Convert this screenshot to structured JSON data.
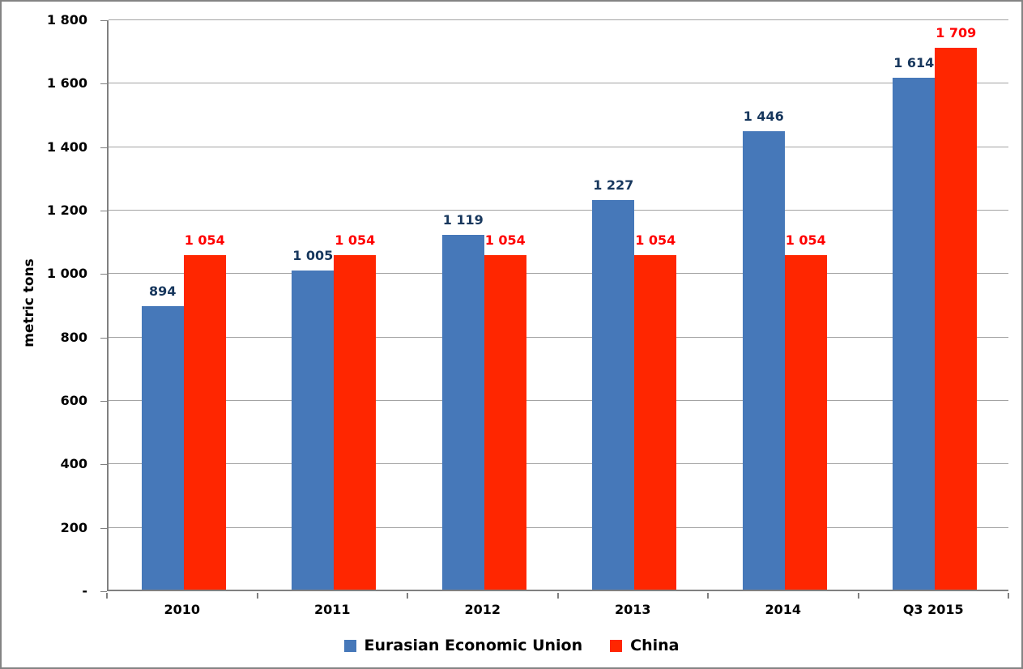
{
  "chart_data": {
    "type": "bar",
    "title": "",
    "xlabel": "",
    "ylabel": "metric tons",
    "ylim": [
      0,
      1800
    ],
    "grid": true,
    "legend_position": "bottom",
    "categories": [
      "2010",
      "2011",
      "2012",
      "2013",
      "2014",
      "Q3 2015"
    ],
    "series": [
      {
        "name": "Eurasian Economic Union",
        "color": "#4678B9",
        "label_color": "#17375D",
        "values": [
          894,
          1005,
          1119,
          1227,
          1446,
          1614
        ],
        "labels": [
          "894",
          "1 005",
          "1 119",
          "1 227",
          "1 446",
          "1 614"
        ]
      },
      {
        "name": "China",
        "color": "#FF2600",
        "label_color": "#FF0000",
        "values": [
          1054,
          1054,
          1054,
          1054,
          1054,
          1709
        ],
        "labels": [
          "1 054",
          "1 054",
          "1 054",
          "1 054",
          "1 054",
          "1 709"
        ]
      }
    ],
    "y_ticks": [
      {
        "value": 0,
        "label": "-"
      },
      {
        "value": 200,
        "label": "200"
      },
      {
        "value": 400,
        "label": "400"
      },
      {
        "value": 600,
        "label": "600"
      },
      {
        "value": 800,
        "label": "800"
      },
      {
        "value": 1000,
        "label": "1 000"
      },
      {
        "value": 1200,
        "label": "1 200"
      },
      {
        "value": 1400,
        "label": "1 400"
      },
      {
        "value": 1600,
        "label": "1 600"
      },
      {
        "value": 1800,
        "label": "1 800"
      }
    ]
  },
  "colors": {
    "bar_blue": "#4678B9",
    "bar_red": "#FF2600",
    "label_blue": "#17375D",
    "label_red": "#FF0000",
    "gridline": "#A3A3A3",
    "axis": "#808080",
    "frame_border": "#848484",
    "text": "#000000",
    "background": "#FFFFFF"
  }
}
